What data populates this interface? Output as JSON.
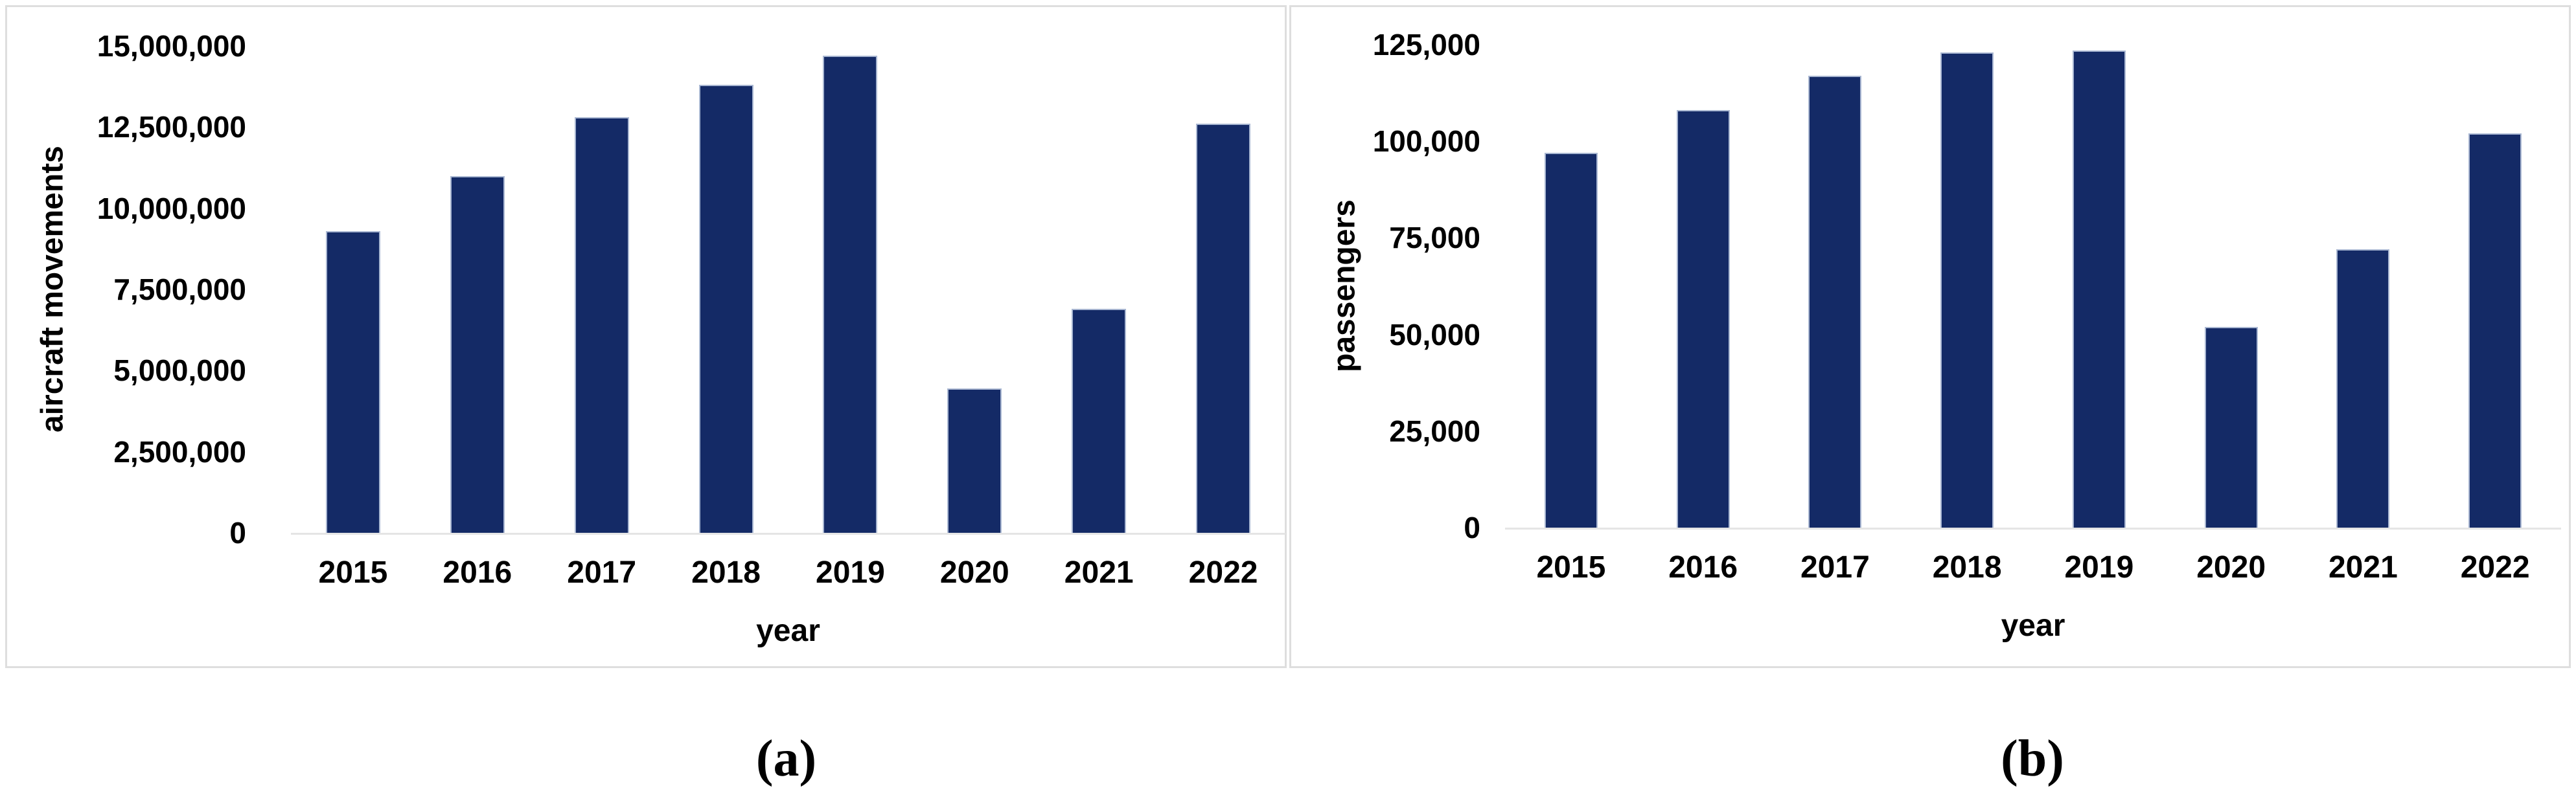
{
  "figure": {
    "caption_a": "(a)",
    "caption_b": "(b)"
  },
  "colors": {
    "bar_fill": "#142a66",
    "bar_outline": "#a9b7d2",
    "axis_line": "#e5e5e5",
    "panel_border": "#dedede",
    "text": "#000000"
  },
  "chart_data": [
    {
      "id": "a",
      "type": "bar",
      "title": "",
      "xlabel": "year",
      "ylabel": "aircraft movements",
      "categories": [
        "2015",
        "2016",
        "2017",
        "2018",
        "2019",
        "2020",
        "2021",
        "2022"
      ],
      "values": [
        9300000,
        11000000,
        12800000,
        13800000,
        14700000,
        4450000,
        6900000,
        12600000
      ],
      "ylim": [
        0,
        15000000
      ],
      "ytick_step": 2500000,
      "yticks": [
        {
          "label": "15,000,000",
          "value": 15000000
        },
        {
          "label": "12,500,000",
          "value": 12500000
        },
        {
          "label": "10,000,000",
          "value": 10000000
        },
        {
          "label": "7,500,000",
          "value": 7500000
        },
        {
          "label": "5,000,000",
          "value": 5000000
        },
        {
          "label": "2,500,000",
          "value": 2500000
        },
        {
          "label": "0",
          "value": 0
        }
      ],
      "grid": false,
      "legend": null,
      "panel_label": "(a)"
    },
    {
      "id": "b",
      "type": "bar",
      "title": "",
      "xlabel": "year",
      "ylabel": "passengers",
      "categories": [
        "2015",
        "2016",
        "2017",
        "2018",
        "2019",
        "2020",
        "2021",
        "2022"
      ],
      "values": [
        97000,
        108000,
        117000,
        123000,
        123500,
        52000,
        72000,
        102000
      ],
      "ylim": [
        0,
        125000
      ],
      "ytick_step": 25000,
      "yticks": [
        {
          "label": "125,000",
          "value": 125000
        },
        {
          "label": "100,000",
          "value": 100000
        },
        {
          "label": "75,000",
          "value": 75000
        },
        {
          "label": "50,000",
          "value": 50000
        },
        {
          "label": "25,000",
          "value": 25000
        },
        {
          "label": "0",
          "value": 0
        }
      ],
      "grid": false,
      "legend": null,
      "panel_label": "(b)"
    }
  ]
}
